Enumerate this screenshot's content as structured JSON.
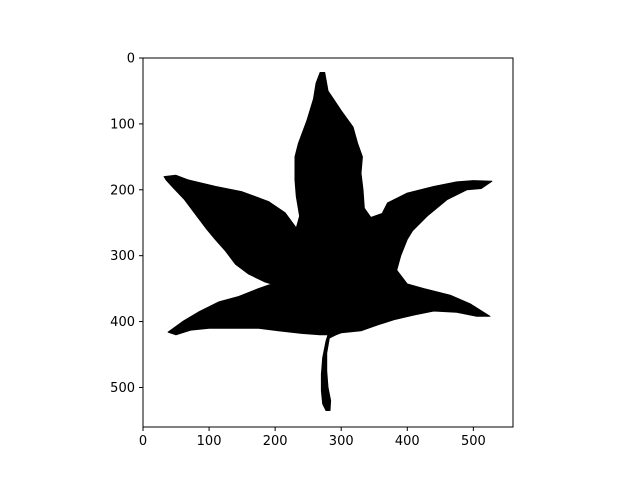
{
  "chart_data": {
    "type": "image",
    "title": "",
    "xlabel": "",
    "ylabel": "",
    "xlim": [
      0,
      560
    ],
    "ylim": [
      560,
      0
    ],
    "x_ticks": [
      0,
      100,
      200,
      300,
      400,
      500
    ],
    "y_ticks": [
      0,
      100,
      200,
      300,
      400,
      500
    ],
    "x_tick_labels": [
      "0",
      "100",
      "200",
      "300",
      "400",
      "500"
    ],
    "y_tick_labels": [
      "0",
      "100",
      "200",
      "300",
      "400",
      "500"
    ],
    "grid": false,
    "image": {
      "description_tag": "leaf-silhouette",
      "foreground_color": "#000000",
      "background_color": "#ffffff",
      "outline": [
        [
          32,
          180
        ],
        [
          50,
          178
        ],
        [
          68,
          185
        ],
        [
          110,
          195
        ],
        [
          150,
          203
        ],
        [
          190,
          218
        ],
        [
          215,
          235
        ],
        [
          232,
          258
        ],
        [
          237,
          240
        ],
        [
          232,
          210
        ],
        [
          230,
          185
        ],
        [
          230,
          150
        ],
        [
          235,
          130
        ],
        [
          248,
          95
        ],
        [
          258,
          62
        ],
        [
          262,
          38
        ],
        [
          268,
          22
        ],
        [
          275,
          22
        ],
        [
          280,
          50
        ],
        [
          300,
          80
        ],
        [
          318,
          105
        ],
        [
          325,
          130
        ],
        [
          332,
          150
        ],
        [
          330,
          175
        ],
        [
          333,
          200
        ],
        [
          335,
          228
        ],
        [
          345,
          242
        ],
        [
          362,
          236
        ],
        [
          370,
          220
        ],
        [
          400,
          205
        ],
        [
          440,
          195
        ],
        [
          475,
          188
        ],
        [
          500,
          186
        ],
        [
          528,
          187
        ],
        [
          512,
          198
        ],
        [
          490,
          200
        ],
        [
          460,
          215
        ],
        [
          430,
          240
        ],
        [
          408,
          262
        ],
        [
          400,
          275
        ],
        [
          390,
          300
        ],
        [
          384,
          322
        ],
        [
          400,
          343
        ],
        [
          425,
          350
        ],
        [
          465,
          360
        ],
        [
          495,
          373
        ],
        [
          525,
          392
        ],
        [
          505,
          392
        ],
        [
          475,
          386
        ],
        [
          440,
          384
        ],
        [
          410,
          390
        ],
        [
          380,
          397
        ],
        [
          355,
          405
        ],
        [
          330,
          414
        ],
        [
          300,
          417
        ],
        [
          292,
          420
        ],
        [
          282,
          425
        ],
        [
          278,
          448
        ],
        [
          278,
          475
        ],
        [
          280,
          500
        ],
        [
          284,
          520
        ],
        [
          283,
          535
        ],
        [
          277,
          535
        ],
        [
          272,
          525
        ],
        [
          270,
          505
        ],
        [
          270,
          480
        ],
        [
          272,
          455
        ],
        [
          277,
          430
        ],
        [
          280,
          420
        ],
        [
          268,
          420
        ],
        [
          240,
          418
        ],
        [
          205,
          414
        ],
        [
          175,
          410
        ],
        [
          140,
          410
        ],
        [
          100,
          410
        ],
        [
          72,
          413
        ],
        [
          50,
          420
        ],
        [
          38,
          416
        ],
        [
          60,
          400
        ],
        [
          85,
          385
        ],
        [
          115,
          370
        ],
        [
          145,
          362
        ],
        [
          175,
          350
        ],
        [
          195,
          343
        ],
        [
          185,
          340
        ],
        [
          160,
          328
        ],
        [
          140,
          313
        ],
        [
          125,
          293
        ],
        [
          110,
          276
        ],
        [
          95,
          258
        ],
        [
          80,
          238
        ],
        [
          62,
          214
        ],
        [
          45,
          196
        ],
        [
          35,
          185
        ]
      ]
    }
  }
}
